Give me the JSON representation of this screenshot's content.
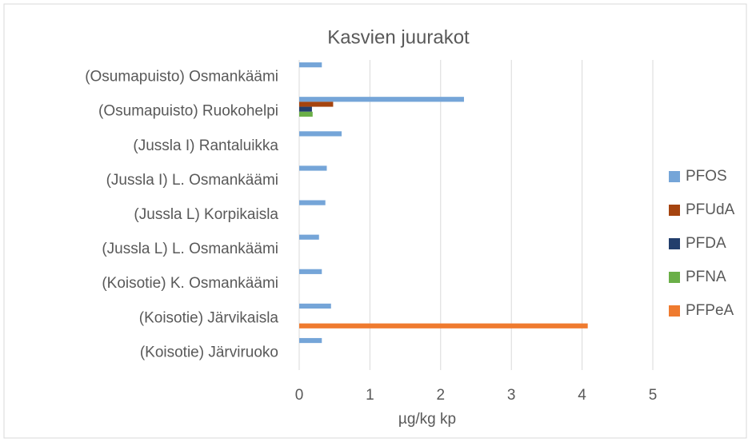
{
  "chart_data": {
    "type": "bar",
    "orientation": "horizontal",
    "title": "Kasvien juurakot",
    "x_label": "µg/kg kp",
    "categories": [
      "(Osumapuisto) Osmankäämi",
      "(Osumapuisto) Ruokohelpi",
      "(Jussla I) Rantaluikka",
      "(Jussla I) L. Osmankäämi",
      "(Jussla L) Korpikaisla",
      "(Jussla L) L. Osmankäämi",
      "(Koisotie) K. Osmankäämi",
      "(Koisotie) Järvikaisla",
      "(Koisotie) Järviruoko"
    ],
    "series": [
      {
        "name": "PFOS",
        "color": "#75a5d8",
        "values": [
          0.32,
          2.33,
          0.6,
          0.39,
          0.37,
          0.28,
          0.32,
          0.45,
          0.32
        ]
      },
      {
        "name": "PFUdA",
        "color": "#a5440f",
        "values": [
          null,
          0.48,
          null,
          null,
          null,
          null,
          null,
          null,
          null
        ]
      },
      {
        "name": "PFDA",
        "color": "#223e6c",
        "values": [
          null,
          0.18,
          null,
          null,
          null,
          null,
          null,
          null,
          null
        ]
      },
      {
        "name": "PFNA",
        "color": "#6aaf47",
        "values": [
          null,
          0.19,
          null,
          null,
          null,
          null,
          null,
          null,
          null
        ]
      },
      {
        "name": "PFPeA",
        "color": "#ef7b2f",
        "values": [
          null,
          null,
          null,
          null,
          null,
          null,
          null,
          4.08,
          null
        ]
      }
    ],
    "xlim": [
      0,
      5
    ],
    "xticks": [
      0,
      1,
      2,
      3,
      4,
      5
    ],
    "grid": true,
    "legend": "right"
  }
}
